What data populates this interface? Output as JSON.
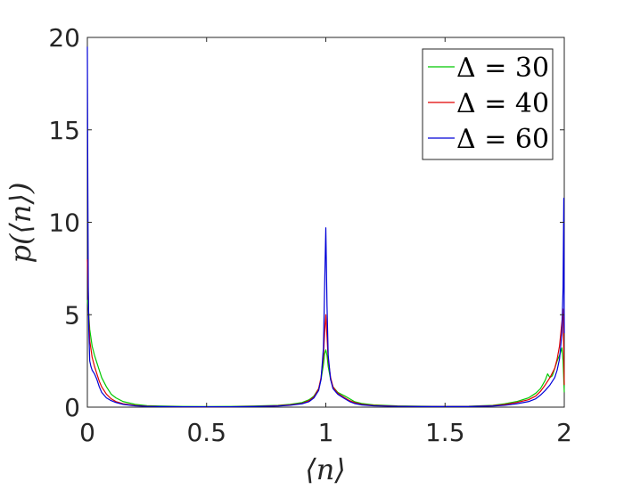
{
  "chart_data": {
    "type": "line",
    "xlabel": "⟨n⟩",
    "ylabel": "p(⟨n⟩)",
    "xlim": [
      0,
      2
    ],
    "ylim": [
      0,
      20
    ],
    "x_ticks": [
      "0",
      "0.5",
      "1",
      "1.5",
      "2"
    ],
    "y_ticks": [
      "0",
      "5",
      "10",
      "15",
      "20"
    ],
    "grid": false,
    "legend_position": "top-right",
    "series": [
      {
        "name": "Δ = 30",
        "color": "#00c800",
        "x": [
          0,
          0.005,
          0.01,
          0.02,
          0.03,
          0.04,
          0.05,
          0.06,
          0.08,
          0.1,
          0.12,
          0.15,
          0.2,
          0.25,
          0.3,
          0.4,
          0.5,
          0.6,
          0.7,
          0.8,
          0.85,
          0.9,
          0.93,
          0.95,
          0.97,
          0.98,
          0.99,
          0.995,
          1.0,
          1.005,
          1.01,
          1.02,
          1.03,
          1.05,
          1.08,
          1.1,
          1.12,
          1.15,
          1.2,
          1.3,
          1.4,
          1.5,
          1.6,
          1.7,
          1.75,
          1.8,
          1.85,
          1.88,
          1.9,
          1.92,
          1.93,
          1.94,
          1.95,
          1.96,
          1.97,
          1.98,
          1.99,
          1.995,
          2.0
        ],
        "y": [
          5.8,
          5.2,
          4.2,
          3.3,
          2.8,
          2.4,
          2.0,
          1.6,
          1.1,
          0.7,
          0.5,
          0.3,
          0.15,
          0.08,
          0.06,
          0.04,
          0.03,
          0.04,
          0.06,
          0.1,
          0.15,
          0.25,
          0.4,
          0.6,
          1.0,
          1.5,
          2.3,
          2.9,
          3.1,
          2.8,
          2.2,
          1.5,
          1.1,
          0.8,
          0.6,
          0.45,
          0.3,
          0.2,
          0.12,
          0.07,
          0.05,
          0.04,
          0.05,
          0.1,
          0.18,
          0.3,
          0.5,
          0.75,
          1.0,
          1.45,
          1.8,
          1.6,
          1.7,
          2.1,
          2.5,
          2.8,
          3.2,
          2.5,
          0.8
        ]
      },
      {
        "name": "Δ = 40",
        "color": "#e00000",
        "x": [
          0,
          0.003,
          0.006,
          0.01,
          0.02,
          0.03,
          0.04,
          0.05,
          0.06,
          0.08,
          0.1,
          0.12,
          0.15,
          0.2,
          0.25,
          0.3,
          0.4,
          0.5,
          0.6,
          0.7,
          0.8,
          0.85,
          0.9,
          0.93,
          0.95,
          0.97,
          0.98,
          0.99,
          0.995,
          1.0,
          1.005,
          1.01,
          1.02,
          1.03,
          1.05,
          1.08,
          1.1,
          1.12,
          1.15,
          1.2,
          1.3,
          1.4,
          1.5,
          1.6,
          1.7,
          1.75,
          1.8,
          1.85,
          1.88,
          1.9,
          1.92,
          1.94,
          1.96,
          1.97,
          1.98,
          1.99,
          1.995,
          2.0
        ],
        "y": [
          8.0,
          6.5,
          4.8,
          3.6,
          2.7,
          2.2,
          1.8,
          1.4,
          1.1,
          0.7,
          0.45,
          0.3,
          0.18,
          0.09,
          0.05,
          0.03,
          0.02,
          0.02,
          0.02,
          0.04,
          0.08,
          0.12,
          0.2,
          0.35,
          0.55,
          1.0,
          1.6,
          2.8,
          4.0,
          5.0,
          3.8,
          2.6,
          1.6,
          1.1,
          0.75,
          0.5,
          0.35,
          0.25,
          0.15,
          0.09,
          0.05,
          0.03,
          0.03,
          0.04,
          0.08,
          0.14,
          0.25,
          0.4,
          0.6,
          0.85,
          1.2,
          1.6,
          2.1,
          2.6,
          3.3,
          4.6,
          5.3,
          1.2
        ]
      },
      {
        "name": "Δ = 60",
        "color": "#0000d8",
        "x": [
          0,
          0.002,
          0.004,
          0.006,
          0.01,
          0.015,
          0.02,
          0.03,
          0.04,
          0.05,
          0.06,
          0.08,
          0.1,
          0.12,
          0.15,
          0.2,
          0.25,
          0.3,
          0.4,
          0.5,
          0.6,
          0.7,
          0.8,
          0.85,
          0.9,
          0.93,
          0.95,
          0.97,
          0.98,
          0.99,
          0.995,
          1.0,
          1.005,
          1.01,
          1.02,
          1.03,
          1.05,
          1.08,
          1.1,
          1.12,
          1.15,
          1.2,
          1.3,
          1.4,
          1.5,
          1.6,
          1.7,
          1.75,
          1.8,
          1.85,
          1.88,
          1.9,
          1.92,
          1.94,
          1.96,
          1.97,
          1.98,
          1.99,
          1.995,
          1.998,
          2.0
        ],
        "y": [
          19.5,
          12.0,
          6.5,
          4.2,
          2.5,
          2.2,
          2.0,
          1.8,
          1.5,
          1.1,
          0.8,
          0.5,
          0.35,
          0.25,
          0.15,
          0.07,
          0.04,
          0.03,
          0.02,
          0.02,
          0.02,
          0.03,
          0.06,
          0.1,
          0.18,
          0.3,
          0.5,
          0.9,
          1.5,
          3.2,
          6.5,
          9.7,
          5.5,
          2.8,
          1.5,
          1.0,
          0.7,
          0.45,
          0.3,
          0.2,
          0.12,
          0.07,
          0.04,
          0.03,
          0.03,
          0.03,
          0.06,
          0.1,
          0.18,
          0.3,
          0.45,
          0.65,
          0.9,
          1.2,
          1.6,
          2.0,
          2.6,
          4.0,
          6.5,
          11.3,
          4.0
        ]
      }
    ]
  }
}
